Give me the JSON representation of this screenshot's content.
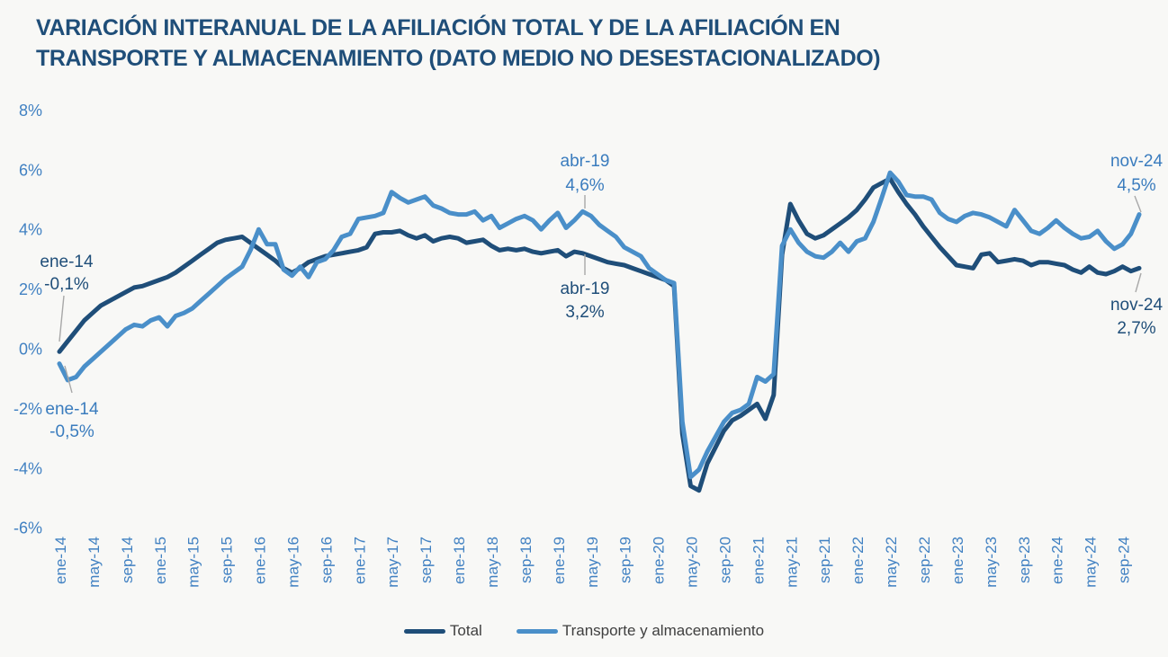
{
  "title": {
    "line1": "VARIACIÓN INTERANUAL DE LA AFILIACIÓN TOTAL Y DE LA AFILIACIÓN EN",
    "line2": "TRANSPORTE Y ALMACENAMIENTO (DATO MEDIO NO DESESTACIONALIZADO)"
  },
  "colors": {
    "background": "#f8f8f6",
    "title_text": "#1f4e79",
    "axis_labels": "#4181c2",
    "total_series": "#1f4e79",
    "transporte_series": "#4a8fc9",
    "annotation_total": "#1f4e79",
    "annotation_transporte": "#3a7cbe",
    "leader_line": "#a8a8a8",
    "legend_text": "#3f3f3f"
  },
  "legend": {
    "total": "Total",
    "transporte": "Transporte y almacenamiento"
  },
  "annotations": [
    {
      "series": "total",
      "line1": "ene-14",
      "line2": "-0,1%"
    },
    {
      "series": "transporte",
      "line1": "ene-14",
      "line2": "-0,5%"
    },
    {
      "series": "transporte",
      "line1": "abr-19",
      "line2": "4,6%"
    },
    {
      "series": "total",
      "line1": "abr-19",
      "line2": "3,2%"
    },
    {
      "series": "transporte",
      "line1": "nov-24",
      "line2": "4,5%"
    },
    {
      "series": "total",
      "line1": "nov-24",
      "line2": "2,7%"
    }
  ],
  "chart_data": {
    "type": "line",
    "title": "VARIACIÓN INTERANUAL DE LA AFILIACIÓN TOTAL Y DE LA AFILIACIÓN EN TRANSPORTE Y ALMACENAMIENTO (DATO MEDIO NO DESESTACIONALIZADO)",
    "frequency": "monthly",
    "x_start": "ene-14",
    "x_end": "nov-24",
    "grid": false,
    "legend_position": "bottom",
    "ylim": [
      -6.5,
      8.5
    ],
    "y_ticks": [
      {
        "label": "8%",
        "value": 8
      },
      {
        "label": "6%",
        "value": 6
      },
      {
        "label": "4%",
        "value": 4
      },
      {
        "label": "2%",
        "value": 2
      },
      {
        "label": "0%",
        "value": 0
      },
      {
        "label": "-2%",
        "value": -2
      },
      {
        "label": "-4%",
        "value": -4
      },
      {
        "label": "-6%",
        "value": -6
      }
    ],
    "x_tick_labels": [
      "ene-14",
      "may-14",
      "sep-14",
      "ene-15",
      "may-15",
      "sep-15",
      "ene-16",
      "may-16",
      "sep-16",
      "ene-17",
      "may-17",
      "sep-17",
      "ene-18",
      "may-18",
      "sep-18",
      "ene-19",
      "may-19",
      "sep-19",
      "ene-20",
      "may-20",
      "sep-20",
      "ene-21",
      "may-21",
      "sep-21",
      "ene-22",
      "may-22",
      "sep-22",
      "ene-23",
      "may-23",
      "sep-23",
      "ene-24",
      "may-24",
      "sep-24"
    ],
    "x_tick_month_step": 4,
    "series": [
      {
        "name": "Total",
        "color": "#1f4e79",
        "values": [
          -0.1,
          0.25,
          0.6,
          0.95,
          1.2,
          1.45,
          1.6,
          1.75,
          1.9,
          2.05,
          2.1,
          2.2,
          2.3,
          2.4,
          2.55,
          2.75,
          2.95,
          3.15,
          3.35,
          3.55,
          3.65,
          3.7,
          3.75,
          3.55,
          3.35,
          3.15,
          2.95,
          2.7,
          2.55,
          2.7,
          2.9,
          3.0,
          3.1,
          3.15,
          3.2,
          3.25,
          3.3,
          3.4,
          3.85,
          3.9,
          3.9,
          3.95,
          3.8,
          3.7,
          3.8,
          3.6,
          3.7,
          3.75,
          3.7,
          3.55,
          3.6,
          3.65,
          3.45,
          3.3,
          3.35,
          3.3,
          3.35,
          3.25,
          3.2,
          3.25,
          3.3,
          3.1,
          3.25,
          3.2,
          3.1,
          3.0,
          2.9,
          2.85,
          2.8,
          2.7,
          2.6,
          2.5,
          2.4,
          2.3,
          2.1,
          -2.85,
          -4.6,
          -4.75,
          -3.85,
          -3.3,
          -2.75,
          -2.4,
          -2.25,
          -2.05,
          -1.85,
          -2.35,
          -1.55,
          3.15,
          4.85,
          4.3,
          3.85,
          3.7,
          3.8,
          4.0,
          4.2,
          4.4,
          4.65,
          5.0,
          5.4,
          5.55,
          5.7,
          5.25,
          4.85,
          4.5,
          4.1,
          3.75,
          3.4,
          3.1,
          2.8,
          2.75,
          2.7,
          3.15,
          3.2,
          2.9,
          2.95,
          3.0,
          2.95,
          2.8,
          2.9,
          2.9,
          2.85,
          2.8,
          2.65,
          2.55,
          2.75,
          2.55,
          2.5,
          2.6,
          2.75,
          2.6,
          2.7
        ]
      },
      {
        "name": "Transporte y almacenamiento",
        "color": "#4a8fc9",
        "values": [
          -0.5,
          -1.05,
          -0.95,
          -0.6,
          -0.35,
          -0.1,
          0.15,
          0.4,
          0.65,
          0.8,
          0.75,
          0.95,
          1.05,
          0.75,
          1.1,
          1.2,
          1.35,
          1.6,
          1.85,
          2.1,
          2.35,
          2.55,
          2.75,
          3.3,
          4.0,
          3.5,
          3.5,
          2.65,
          2.45,
          2.75,
          2.4,
          2.9,
          3.0,
          3.3,
          3.75,
          3.85,
          4.35,
          4.4,
          4.45,
          4.55,
          5.25,
          5.05,
          4.9,
          5.0,
          5.1,
          4.8,
          4.7,
          4.55,
          4.5,
          4.5,
          4.6,
          4.3,
          4.45,
          4.05,
          4.2,
          4.35,
          4.45,
          4.3,
          4.0,
          4.3,
          4.55,
          4.05,
          4.3,
          4.6,
          4.45,
          4.15,
          3.95,
          3.75,
          3.4,
          3.25,
          3.1,
          2.7,
          2.5,
          2.3,
          2.2,
          -2.45,
          -4.3,
          -4.05,
          -3.45,
          -2.95,
          -2.45,
          -2.15,
          -2.05,
          -1.85,
          -0.95,
          -1.1,
          -0.85,
          3.45,
          4.0,
          3.55,
          3.25,
          3.1,
          3.05,
          3.25,
          3.55,
          3.25,
          3.6,
          3.7,
          4.25,
          5.05,
          5.9,
          5.6,
          5.15,
          5.1,
          5.1,
          5.0,
          4.55,
          4.35,
          4.25,
          4.45,
          4.55,
          4.5,
          4.4,
          4.25,
          4.1,
          4.65,
          4.3,
          3.95,
          3.85,
          4.05,
          4.3,
          4.05,
          3.85,
          3.7,
          3.75,
          3.95,
          3.6,
          3.35,
          3.5,
          3.85,
          4.5
        ]
      }
    ]
  }
}
